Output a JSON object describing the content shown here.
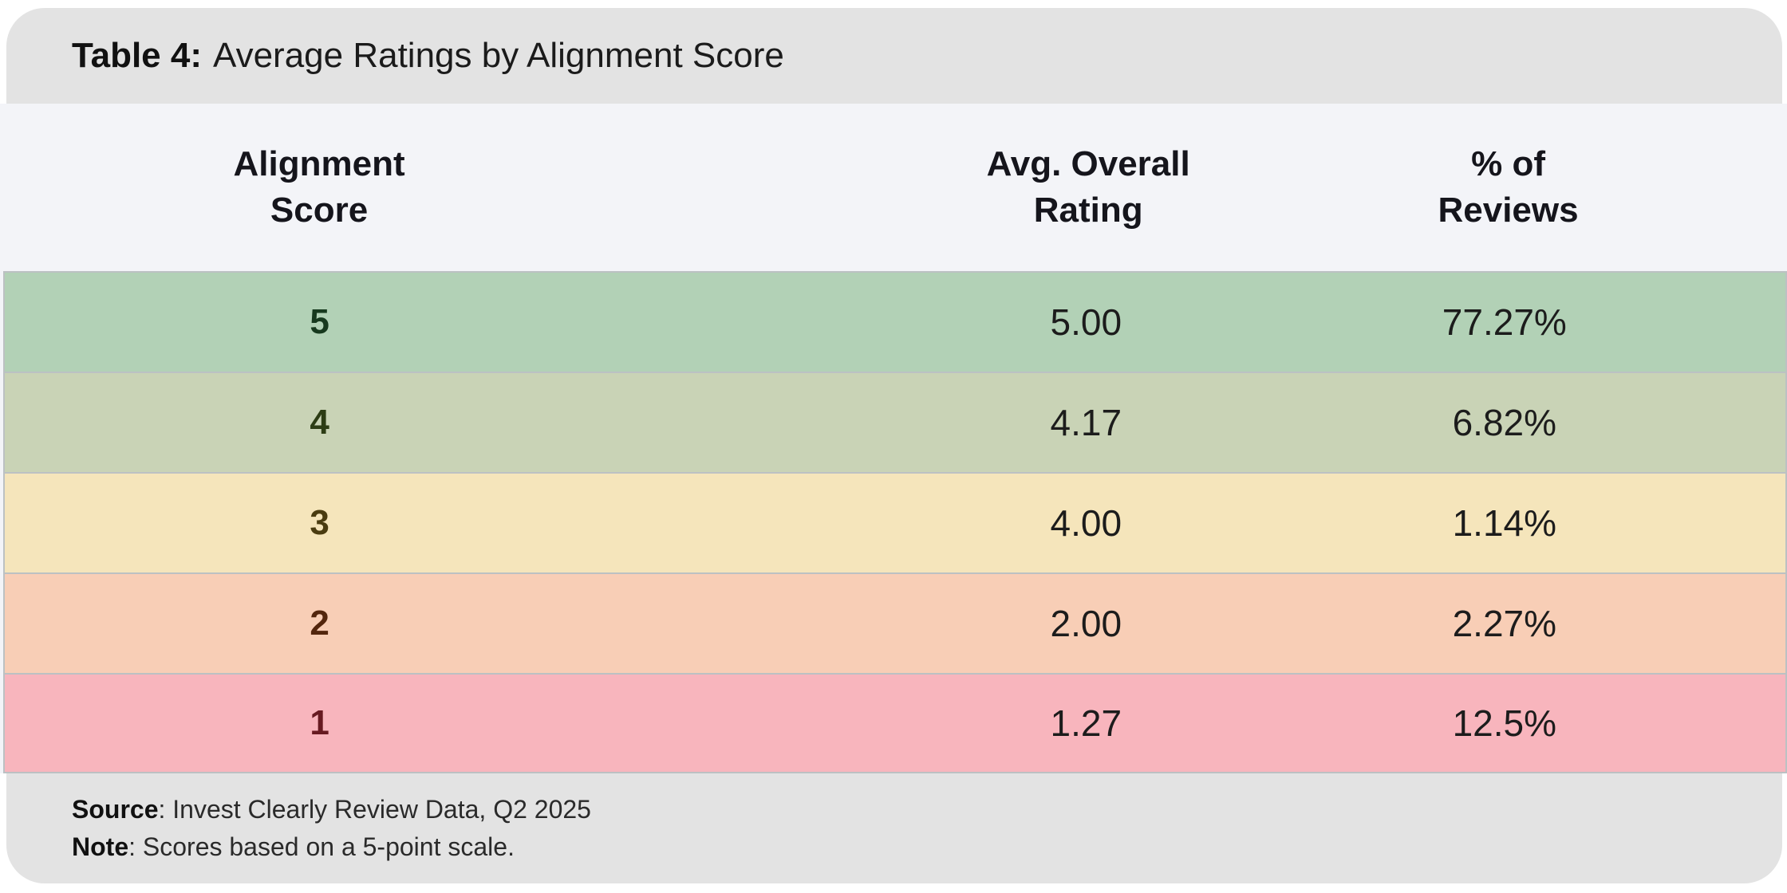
{
  "caption": {
    "label": "Table 4:",
    "text": "Average Ratings by Alignment Score"
  },
  "table": {
    "headers": [
      {
        "line1": "Alignment",
        "line2": "Score"
      },
      {
        "line1": "Avg. Overall",
        "line2": "Rating"
      },
      {
        "line1": "% of",
        "line2": "Reviews"
      }
    ],
    "rows": [
      {
        "score": "5",
        "rating": "5.00",
        "pct": "77.27%",
        "color": "#b2d1b6",
        "score_color": "#17391e"
      },
      {
        "score": "4",
        "rating": "4.17",
        "pct": "6.82%",
        "color": "#c9d3b6",
        "score_color": "#2d3d15"
      },
      {
        "score": "3",
        "rating": "4.00",
        "pct": "1.14%",
        "color": "#f5e5bb",
        "score_color": "#4a3c10"
      },
      {
        "score": "2",
        "rating": "2.00",
        "pct": "2.27%",
        "color": "#f8ceb6",
        "score_color": "#53260d"
      },
      {
        "score": "1",
        "rating": "1.27",
        "pct": "12.5%",
        "color": "#f8b5bd",
        "score_color": "#671a21"
      }
    ]
  },
  "footnotes": {
    "source_label": "Source",
    "source_text": ": Invest Clearly Review Data, Q2 2025",
    "note_label": "Note",
    "note_text": ": Scores based on a 5-point scale."
  },
  "theme": {
    "band_bg": "#e3e3e3",
    "table_header_bg": "#f3f4f8",
    "row_divider": "#bcc1c3",
    "text": "#1d1d1d"
  },
  "chart_data": {
    "type": "table",
    "title": "Table 4: Average Ratings by Alignment Score",
    "columns": [
      "Alignment Score",
      "Avg. Overall Rating",
      "% of Reviews"
    ],
    "rows": [
      {
        "alignment_score": 5,
        "avg_overall_rating": 5.0,
        "pct_of_reviews": 77.27
      },
      {
        "alignment_score": 4,
        "avg_overall_rating": 4.17,
        "pct_of_reviews": 6.82
      },
      {
        "alignment_score": 3,
        "avg_overall_rating": 4.0,
        "pct_of_reviews": 1.14
      },
      {
        "alignment_score": 2,
        "avg_overall_rating": 2.0,
        "pct_of_reviews": 2.27
      },
      {
        "alignment_score": 1,
        "avg_overall_rating": 1.27,
        "pct_of_reviews": 12.5
      }
    ],
    "row_color_scale": [
      "#b2d1b6",
      "#c9d3b6",
      "#f5e5bb",
      "#f8ceb6",
      "#f8b5bd"
    ],
    "source": "Invest Clearly Review Data, Q2 2025",
    "note": "Scores based on a 5-point scale."
  }
}
